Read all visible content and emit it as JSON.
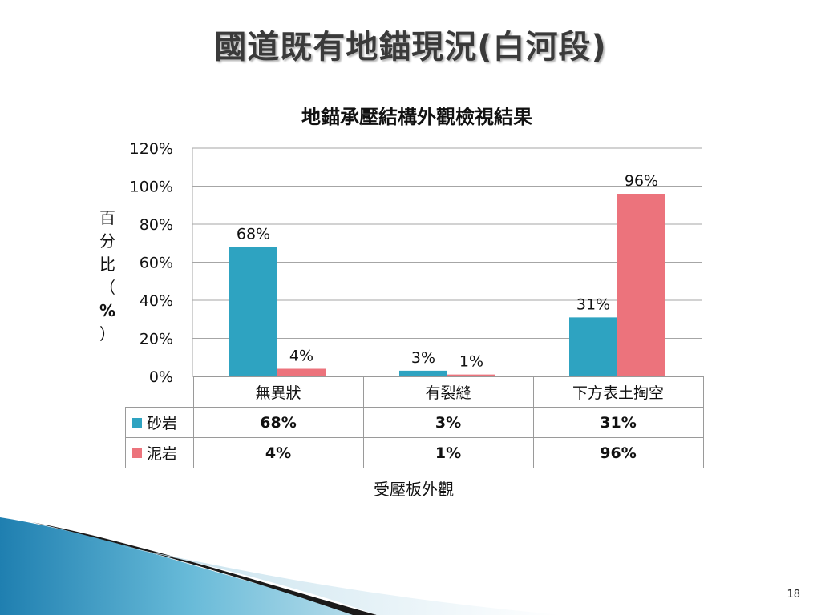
{
  "slide": {
    "title": "國道既有地錨現況(白河段)",
    "page_number": "18"
  },
  "chart_data": {
    "type": "bar",
    "title": "地錨承壓結構外觀檢視結果",
    "xlabel": "受壓板外觀",
    "ylabel_chars": [
      "百",
      "分",
      "比",
      "（",
      "%",
      "）"
    ],
    "ylim": [
      0,
      1.2
    ],
    "yticks": [
      0,
      0.2,
      0.4,
      0.6,
      0.8,
      1.0,
      1.2
    ],
    "ytick_labels": [
      "0%",
      "20%",
      "40%",
      "60%",
      "80%",
      "100%",
      "120%"
    ],
    "grid": true,
    "legend": "data-table",
    "categories": [
      "無異狀",
      "有裂縫",
      "下方表土掏空"
    ],
    "series": [
      {
        "name": "砂岩",
        "color": "#2ea3c1",
        "values": [
          0.68,
          0.03,
          0.31
        ],
        "labels": [
          "68%",
          "3%",
          "31%"
        ]
      },
      {
        "name": "泥岩",
        "color": "#ec737c",
        "values": [
          0.04,
          0.01,
          0.96
        ],
        "labels": [
          "4%",
          "1%",
          "96%"
        ]
      }
    ]
  }
}
